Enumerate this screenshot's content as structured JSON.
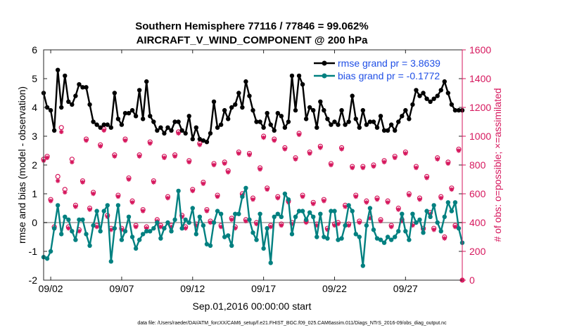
{
  "chart_data": {
    "type": "line",
    "title": "Southern Hemisphere 77116 / 77846 = 99.062%",
    "subtitle": "AIRCRAFT_V_WIND_COMPONENT @ 200 hPa",
    "xlabel": "Sep.01,2016 00:00:00 start",
    "ylabel": "rmse and bias (model - observation)",
    "ylabel_right": "# of obs: o=possible; ×=assimilated",
    "footnote": "data file: /Users/raeder/DAI/ATM_forcXX/CAM6_setup/f.e21.FHIST_BGC.f09_025.CAM6assim.011/Diags_NTrS_2016-09/obs_diag_output.nc",
    "x_tick_labels": [
      "09/02",
      "09/07",
      "09/12",
      "09/17",
      "09/22",
      "09/27"
    ],
    "x_tick_days": [
      2,
      7,
      12,
      17,
      22,
      27
    ],
    "xlim": [
      1.5,
      31.0
    ],
    "ylim": [
      -2,
      6
    ],
    "y_ticks": [
      -2,
      -1,
      0,
      1,
      2,
      3,
      4,
      5,
      6
    ],
    "ylim_right": [
      0,
      1600
    ],
    "y_ticks_right": [
      0,
      200,
      400,
      600,
      800,
      1000,
      1200,
      1400,
      1600
    ],
    "grid": false,
    "legend_position": "top-right",
    "colors": {
      "rmse": "#000000",
      "bias": "#008080",
      "counts": "#d6175d",
      "zero_line": "#b4b4b4",
      "legend_text": "#1f4fe6"
    },
    "series": [
      {
        "name": "rmse grand pr = 3.8639",
        "axis": "left",
        "x": [
          1.5,
          1.75,
          2.0,
          2.25,
          2.5,
          2.75,
          3.0,
          3.25,
          3.5,
          3.75,
          4.0,
          4.25,
          4.5,
          4.75,
          5.0,
          5.25,
          5.5,
          5.75,
          6.0,
          6.25,
          6.5,
          6.75,
          7.0,
          7.25,
          7.5,
          7.75,
          8.0,
          8.25,
          8.5,
          8.75,
          9.0,
          9.25,
          9.5,
          9.75,
          10.0,
          10.25,
          10.5,
          10.75,
          11.0,
          11.25,
          11.5,
          11.75,
          12.0,
          12.25,
          12.5,
          12.75,
          13.0,
          13.25,
          13.5,
          13.75,
          14.0,
          14.25,
          14.5,
          14.75,
          15.0,
          15.25,
          15.5,
          15.75,
          16.0,
          16.25,
          16.5,
          16.75,
          17.0,
          17.25,
          17.5,
          17.75,
          18.0,
          18.25,
          18.5,
          18.75,
          19.0,
          19.25,
          19.5,
          19.75,
          20.0,
          20.25,
          20.5,
          20.75,
          21.0,
          21.25,
          21.5,
          21.75,
          22.0,
          22.25,
          22.5,
          22.75,
          23.0,
          23.25,
          23.5,
          23.75,
          24.0,
          24.25,
          24.5,
          24.75,
          25.0,
          25.25,
          25.5,
          25.75,
          26.0,
          26.25,
          26.5,
          26.75,
          27.0,
          27.25,
          27.5,
          27.75,
          28.0,
          28.25,
          28.5,
          28.75,
          29.0,
          29.25,
          29.5,
          29.75,
          30.0,
          30.25,
          30.5,
          30.75,
          31.0
        ],
        "values": [
          4.5,
          4.0,
          3.9,
          3.2,
          5.3,
          4.0,
          5.1,
          4.2,
          4.1,
          4.4,
          4.8,
          4.7,
          4.7,
          4.1,
          3.5,
          3.4,
          3.3,
          3.4,
          3.4,
          3.3,
          4.5,
          3.6,
          3.4,
          3.8,
          3.8,
          3.9,
          3.7,
          4.6,
          3.6,
          4.9,
          3.7,
          3.5,
          3.2,
          3.3,
          3.1,
          3.3,
          3.2,
          3.5,
          3.5,
          3.2,
          3.1,
          3.7,
          2.9,
          3.3,
          2.9,
          2.85,
          2.8,
          3.1,
          4.2,
          3.3,
          3.4,
          3.9,
          3.6,
          4.0,
          4.1,
          4.5,
          4.0,
          4.9,
          4.4,
          3.9,
          3.5,
          3.5,
          3.3,
          3.8,
          3.4,
          3.2,
          3.8,
          3.7,
          3.3,
          3.5,
          5.1,
          3.9,
          5.1,
          4.8,
          3.6,
          4.0,
          3.9,
          3.3,
          4.2,
          3.9,
          3.6,
          3.4,
          3.5,
          3.4,
          3.9,
          3.4,
          3.5,
          4.4,
          3.6,
          3.3,
          3.9,
          3.4,
          3.5,
          3.5,
          3.3,
          3.7,
          3.2,
          3.2,
          3.4,
          3.2,
          3.5,
          3.7,
          3.9,
          3.6,
          4.1,
          4.6,
          4.4,
          4.5,
          4.3,
          4.2,
          4.3,
          4.4,
          4.6,
          4.9,
          4.5,
          4.1,
          3.9,
          3.9,
          3.9
        ]
      },
      {
        "name": "bias grand pr = -0.1772",
        "axis": "left",
        "x": [
          1.5,
          1.75,
          2.0,
          2.25,
          2.5,
          2.75,
          3.0,
          3.25,
          3.5,
          3.75,
          4.0,
          4.25,
          4.5,
          4.75,
          5.0,
          5.25,
          5.5,
          5.75,
          6.0,
          6.25,
          6.5,
          6.75,
          7.0,
          7.25,
          7.5,
          7.75,
          8.0,
          8.25,
          8.5,
          8.75,
          9.0,
          9.25,
          9.5,
          9.75,
          10.0,
          10.25,
          10.5,
          10.75,
          11.0,
          11.25,
          11.5,
          11.75,
          12.0,
          12.25,
          12.5,
          12.75,
          13.0,
          13.25,
          13.5,
          13.75,
          14.0,
          14.25,
          14.5,
          14.75,
          15.0,
          15.25,
          15.5,
          15.75,
          16.0,
          16.25,
          16.5,
          16.75,
          17.0,
          17.25,
          17.5,
          17.75,
          18.0,
          18.25,
          18.5,
          18.75,
          19.0,
          19.25,
          19.5,
          19.75,
          20.0,
          20.25,
          20.5,
          20.75,
          21.0,
          21.25,
          21.5,
          21.75,
          22.0,
          22.25,
          22.5,
          22.75,
          23.0,
          23.25,
          23.5,
          23.75,
          24.0,
          24.25,
          24.5,
          24.75,
          25.0,
          25.25,
          25.5,
          25.75,
          26.0,
          26.25,
          26.5,
          26.75,
          27.0,
          27.25,
          27.5,
          27.75,
          28.0,
          28.25,
          28.5,
          28.75,
          29.0,
          29.25,
          29.5,
          29.75,
          30.0,
          30.25,
          30.5,
          30.75,
          31.0
        ],
        "values": [
          -1.2,
          -1.25,
          -1.0,
          -0.2,
          0.6,
          -0.4,
          0.2,
          0.1,
          -0.3,
          -0.6,
          0.1,
          0.1,
          -0.4,
          -0.8,
          -0.1,
          0.4,
          -0.3,
          0.4,
          0.6,
          -1.35,
          -0.2,
          0.6,
          -0.6,
          -0.3,
          0.2,
          -0.5,
          -0.9,
          -0.6,
          -0.4,
          -0.3,
          -0.3,
          -0.2,
          0.0,
          -0.55,
          -0.2,
          0.0,
          -0.3,
          0.1,
          1.1,
          -0.2,
          0.1,
          0.0,
          0.5,
          -0.4,
          0.2,
          -0.1,
          -0.75,
          -0.8,
          0.0,
          0.4,
          0.3,
          -0.5,
          -0.45,
          -0.8,
          0.3,
          0.3,
          0.9,
          1.2,
          0.1,
          -0.35,
          -0.6,
          0.3,
          -0.9,
          -0.2,
          -1.4,
          0.2,
          0.3,
          0.2,
          1.0,
          0.8,
          -0.4,
          0.2,
          0.4,
          0.4,
          0.1,
          0.35,
          0.2,
          -0.5,
          0.3,
          -0.5,
          -0.55,
          0.4,
          0.4,
          -0.6,
          -0.55,
          -0.1,
          0.6,
          0.4,
          -0.4,
          -0.5,
          -1.5,
          -0.1,
          0.5,
          -0.25,
          -0.55,
          -0.6,
          -0.7,
          -0.5,
          -0.6,
          -0.5,
          -0.3,
          0.3,
          -0.3,
          -0.6,
          0.3,
          0.0,
          0.1,
          -0.35,
          0.4,
          0.2,
          0.6,
          0.0,
          -0.3,
          0.2,
          0.7,
          0.4,
          0.7,
          -0.2,
          -0.7
        ]
      },
      {
        "name": "possible",
        "axis": "right",
        "marker": "o",
        "x": [
          1.5,
          1.75,
          2.0,
          2.25,
          2.5,
          2.75,
          3.0,
          3.25,
          3.5,
          3.75,
          4.0,
          4.25,
          4.5,
          4.75,
          5.0,
          5.25,
          5.5,
          5.75,
          6.0,
          6.25,
          6.5,
          6.75,
          7.0,
          7.25,
          7.5,
          7.75,
          8.0,
          8.25,
          8.5,
          8.75,
          9.0,
          9.25,
          9.5,
          9.75,
          10.0,
          10.25,
          10.5,
          10.75,
          11.0,
          11.25,
          11.5,
          11.75,
          12.0,
          12.25,
          12.5,
          12.75,
          13.0,
          13.25,
          13.5,
          13.75,
          14.0,
          14.25,
          14.5,
          14.75,
          15.0,
          15.25,
          15.5,
          15.75,
          16.0,
          16.25,
          16.5,
          16.75,
          17.0,
          17.25,
          17.5,
          17.75,
          18.0,
          18.25,
          18.5,
          18.75,
          19.0,
          19.25,
          19.5,
          19.75,
          20.0,
          20.25,
          20.5,
          20.75,
          21.0,
          21.25,
          21.5,
          21.75,
          22.0,
          22.25,
          22.5,
          22.75,
          23.0,
          23.25,
          23.5,
          23.75,
          24.0,
          24.25,
          24.5,
          24.75,
          25.0,
          25.25,
          25.5,
          25.75,
          26.0,
          26.25,
          26.5,
          26.75,
          27.0,
          27.25,
          27.5,
          27.75,
          28.0,
          28.25,
          28.5,
          28.75,
          29.0,
          29.25,
          29.5,
          29.75,
          30.0,
          30.25,
          30.5,
          30.75,
          31.0
        ],
        "values": [
          840,
          860,
          560,
          370,
          720,
          1060,
          630,
          370,
          840,
          520,
          350,
          690,
          980,
          500,
          610,
          380,
          940,
          1050,
          450,
          360,
          870,
          590,
          360,
          980,
          710,
          550,
          380,
          870,
          490,
          370,
          960,
          690,
          420,
          380,
          860,
          580,
          380,
          870,
          1030,
          450,
          370,
          830,
          630,
          390,
          950,
          680,
          490,
          410,
          810,
          590,
          380,
          820,
          760,
          430,
          370,
          890,
          600,
          420,
          880,
          570,
          400,
          780,
          1000,
          640,
          380,
          980,
          580,
          390,
          920,
          550,
          400,
          850,
          1020,
          590,
          410,
          890,
          540,
          390,
          930,
          560,
          360,
          810,
          390,
          400,
          920,
          520,
          390,
          790,
          590,
          410,
          790,
          550,
          440,
          800,
          570,
          420,
          830,
          550,
          380,
          860,
          500,
          420,
          890,
          600,
          390,
          790,
          570,
          360,
          720,
          470,
          360,
          850,
          580,
          300,
          820,
          640,
          380,
          910,
          0
        ]
      },
      {
        "name": "assimilated",
        "axis": "right",
        "marker": "x",
        "x": [
          1.5,
          1.75,
          2.0,
          2.25,
          2.5,
          2.75,
          3.0,
          3.25,
          3.5,
          3.75,
          4.0,
          4.25,
          4.5,
          4.75,
          5.0,
          5.25,
          5.5,
          5.75,
          6.0,
          6.25,
          6.5,
          6.75,
          7.0,
          7.25,
          7.5,
          7.75,
          8.0,
          8.25,
          8.5,
          8.75,
          9.0,
          9.25,
          9.5,
          9.75,
          10.0,
          10.25,
          10.5,
          10.75,
          11.0,
          11.25,
          11.5,
          11.75,
          12.0,
          12.25,
          12.5,
          12.75,
          13.0,
          13.25,
          13.5,
          13.75,
          14.0,
          14.25,
          14.5,
          14.75,
          15.0,
          15.25,
          15.5,
          15.75,
          16.0,
          16.25,
          16.5,
          16.75,
          17.0,
          17.25,
          17.5,
          17.75,
          18.0,
          18.25,
          18.5,
          18.75,
          19.0,
          19.25,
          19.5,
          19.75,
          20.0,
          20.25,
          20.5,
          20.75,
          21.0,
          21.25,
          21.5,
          21.75,
          22.0,
          22.25,
          22.5,
          22.75,
          23.0,
          23.25,
          23.5,
          23.75,
          24.0,
          24.25,
          24.5,
          24.75,
          25.0,
          25.25,
          25.5,
          25.75,
          26.0,
          26.25,
          26.5,
          26.75,
          27.0,
          27.25,
          27.5,
          27.75,
          28.0,
          28.25,
          28.5,
          28.75,
          29.0,
          29.25,
          29.5,
          29.75,
          30.0,
          30.25,
          30.5,
          30.75,
          31.0
        ],
        "values": [
          830,
          850,
          550,
          360,
          690,
          1030,
          610,
          360,
          820,
          510,
          340,
          680,
          970,
          490,
          600,
          370,
          930,
          1040,
          440,
          350,
          860,
          580,
          350,
          970,
          700,
          540,
          370,
          860,
          480,
          360,
          950,
          680,
          410,
          370,
          850,
          570,
          370,
          860,
          1020,
          440,
          360,
          820,
          620,
          380,
          940,
          670,
          480,
          400,
          800,
          580,
          370,
          810,
          750,
          420,
          360,
          880,
          590,
          410,
          870,
          560,
          390,
          770,
          990,
          630,
          370,
          970,
          570,
          380,
          910,
          540,
          390,
          840,
          1010,
          580,
          400,
          880,
          530,
          380,
          920,
          550,
          350,
          800,
          380,
          390,
          910,
          510,
          380,
          780,
          580,
          400,
          780,
          540,
          430,
          790,
          560,
          410,
          820,
          540,
          370,
          850,
          490,
          410,
          880,
          590,
          380,
          780,
          560,
          350,
          710,
          460,
          350,
          840,
          570,
          290,
          810,
          630,
          370,
          900,
          0
        ]
      }
    ]
  }
}
